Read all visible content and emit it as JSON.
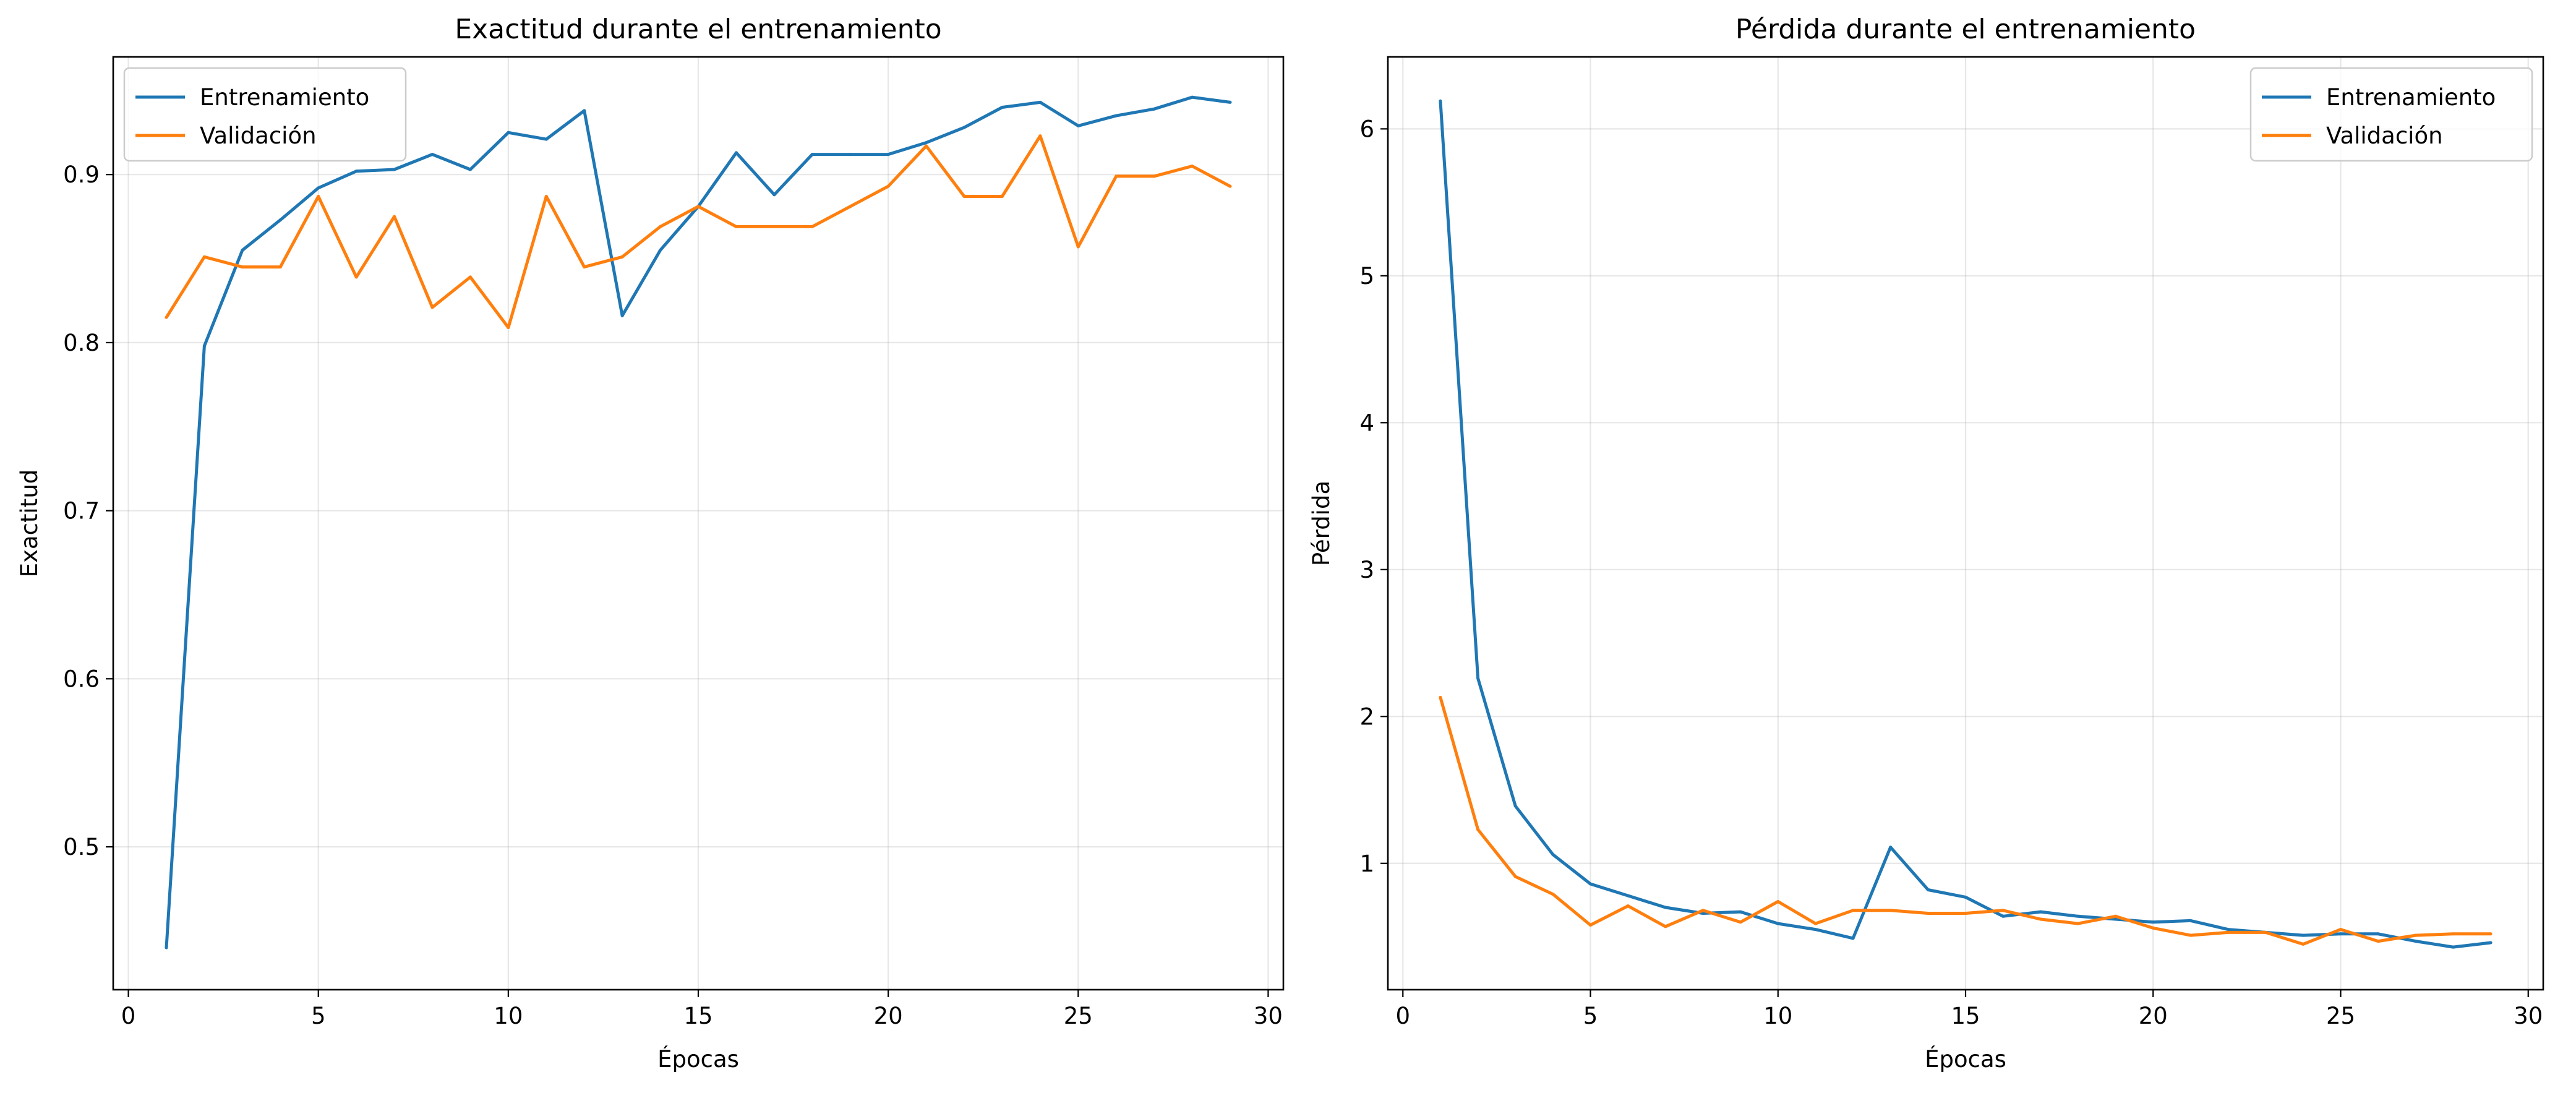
{
  "chart_data": [
    {
      "type": "line",
      "title": "Exactitud durante el entrenamiento",
      "xlabel": "Épocas",
      "ylabel": "Exactitud",
      "xlim": [
        -0.4,
        30.4
      ],
      "ylim": [
        0.415,
        0.97
      ],
      "xticks": [
        0,
        5,
        10,
        15,
        20,
        25,
        30
      ],
      "yticks": [
        0.5,
        0.6,
        0.7,
        0.8,
        0.9
      ],
      "xtick_labels": [
        "0",
        "5",
        "10",
        "15",
        "20",
        "25",
        "30"
      ],
      "ytick_labels": [
        "0.5",
        "0.6",
        "0.7",
        "0.8",
        "0.9"
      ],
      "grid": true,
      "legend_position": "top-left",
      "x": [
        1,
        2,
        3,
        4,
        5,
        6,
        7,
        8,
        9,
        10,
        11,
        12,
        13,
        14,
        15,
        16,
        17,
        18,
        19,
        20,
        21,
        22,
        23,
        24,
        25,
        26,
        27,
        28,
        29
      ],
      "series": [
        {
          "name": "Entrenamiento",
          "color": "#1f77b4",
          "values": [
            0.44,
            0.798,
            0.855,
            0.873,
            0.892,
            0.902,
            0.903,
            0.912,
            0.903,
            0.925,
            0.921,
            0.938,
            0.816,
            0.855,
            0.881,
            0.913,
            0.888,
            0.912,
            0.912,
            0.912,
            0.919,
            0.928,
            0.94,
            0.943,
            0.929,
            0.935,
            0.939,
            0.946,
            0.943
          ]
        },
        {
          "name": "Validación",
          "color": "#ff7f0e",
          "values": [
            0.815,
            0.851,
            0.845,
            0.845,
            0.887,
            0.839,
            0.875,
            0.821,
            0.839,
            0.809,
            0.887,
            0.845,
            0.851,
            0.869,
            0.881,
            0.869,
            0.869,
            0.869,
            0.881,
            0.893,
            0.917,
            0.887,
            0.887,
            0.923,
            0.857,
            0.899,
            0.899,
            0.905,
            0.893
          ]
        }
      ]
    },
    {
      "type": "line",
      "title": "Pérdida durante el entrenamiento",
      "xlabel": "Épocas",
      "ylabel": "Pérdida",
      "xlim": [
        -0.4,
        30.4
      ],
      "ylim": [
        0.14,
        6.49
      ],
      "xticks": [
        0,
        5,
        10,
        15,
        20,
        25,
        30
      ],
      "yticks": [
        1,
        2,
        3,
        4,
        5,
        6
      ],
      "xtick_labels": [
        "0",
        "5",
        "10",
        "15",
        "20",
        "25",
        "30"
      ],
      "ytick_labels": [
        "1",
        "2",
        "3",
        "4",
        "5",
        "6"
      ],
      "grid": true,
      "legend_position": "top-right",
      "x": [
        1,
        2,
        3,
        4,
        5,
        6,
        7,
        8,
        9,
        10,
        11,
        12,
        13,
        14,
        15,
        16,
        17,
        18,
        19,
        20,
        21,
        22,
        23,
        24,
        25,
        26,
        27,
        28,
        29
      ],
      "series": [
        {
          "name": "Entrenamiento",
          "color": "#1f77b4",
          "values": [
            6.19,
            2.26,
            1.39,
            1.06,
            0.86,
            0.78,
            0.7,
            0.66,
            0.67,
            0.59,
            0.55,
            0.49,
            1.11,
            0.82,
            0.77,
            0.64,
            0.67,
            0.64,
            0.62,
            0.6,
            0.61,
            0.55,
            0.53,
            0.51,
            0.52,
            0.52,
            0.47,
            0.43,
            0.46
          ]
        },
        {
          "name": "Validación",
          "color": "#ff7f0e",
          "values": [
            2.13,
            1.23,
            0.91,
            0.79,
            0.58,
            0.71,
            0.57,
            0.68,
            0.6,
            0.74,
            0.59,
            0.68,
            0.68,
            0.66,
            0.66,
            0.68,
            0.62,
            0.59,
            0.64,
            0.56,
            0.51,
            0.53,
            0.53,
            0.45,
            0.55,
            0.47,
            0.51,
            0.52,
            0.52
          ]
        }
      ]
    }
  ]
}
